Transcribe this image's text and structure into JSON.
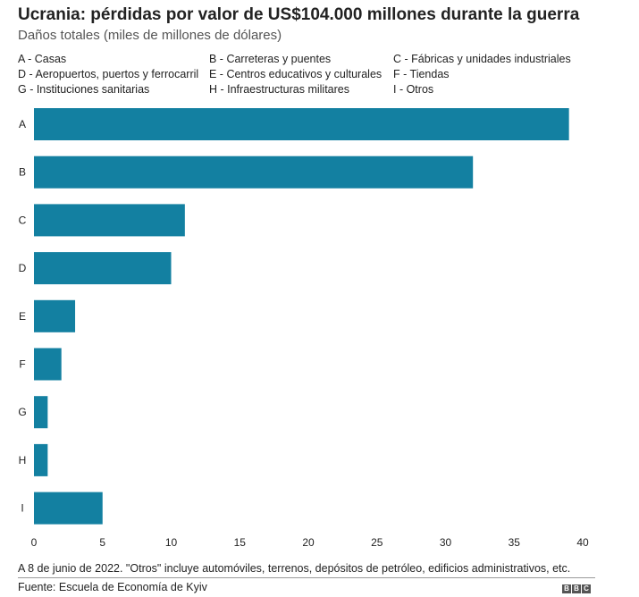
{
  "header": {
    "title": "Ucrania: pérdidas por valor de US$104.000 millones durante la guerra",
    "subtitle": "Daños totales (miles de millones de dólares)"
  },
  "legend": [
    "A - Casas",
    "B - Carreteras y puentes",
    "C - Fábricas y unidades industriales",
    "D - Aeropuertos, puertos y ferrocarril",
    "E - Centros educativos y culturales",
    "F - Tiendas",
    "G - Instituciones sanitarias",
    "H - Infraestructuras militares",
    "I - Otros"
  ],
  "footer": {
    "note": "A 8 de junio de 2022. \"Otros\" incluye automóviles, terrenos, depósitos de petróleo, edificios administrativos, etc.",
    "source": "Fuente: Escuela de Economía de Kyiv",
    "logo_letters": [
      "B",
      "B",
      "C"
    ]
  },
  "chart_data": {
    "type": "bar",
    "orientation": "horizontal",
    "categories": [
      "A",
      "B",
      "C",
      "D",
      "E",
      "F",
      "G",
      "H",
      "I"
    ],
    "values": [
      39,
      32,
      11,
      10,
      3,
      2,
      1,
      1,
      5
    ],
    "xlim": [
      0,
      40
    ],
    "xticks": [
      0,
      5,
      10,
      15,
      20,
      25,
      30,
      35,
      40
    ],
    "grid": false,
    "bar_color": "#1380a1"
  }
}
